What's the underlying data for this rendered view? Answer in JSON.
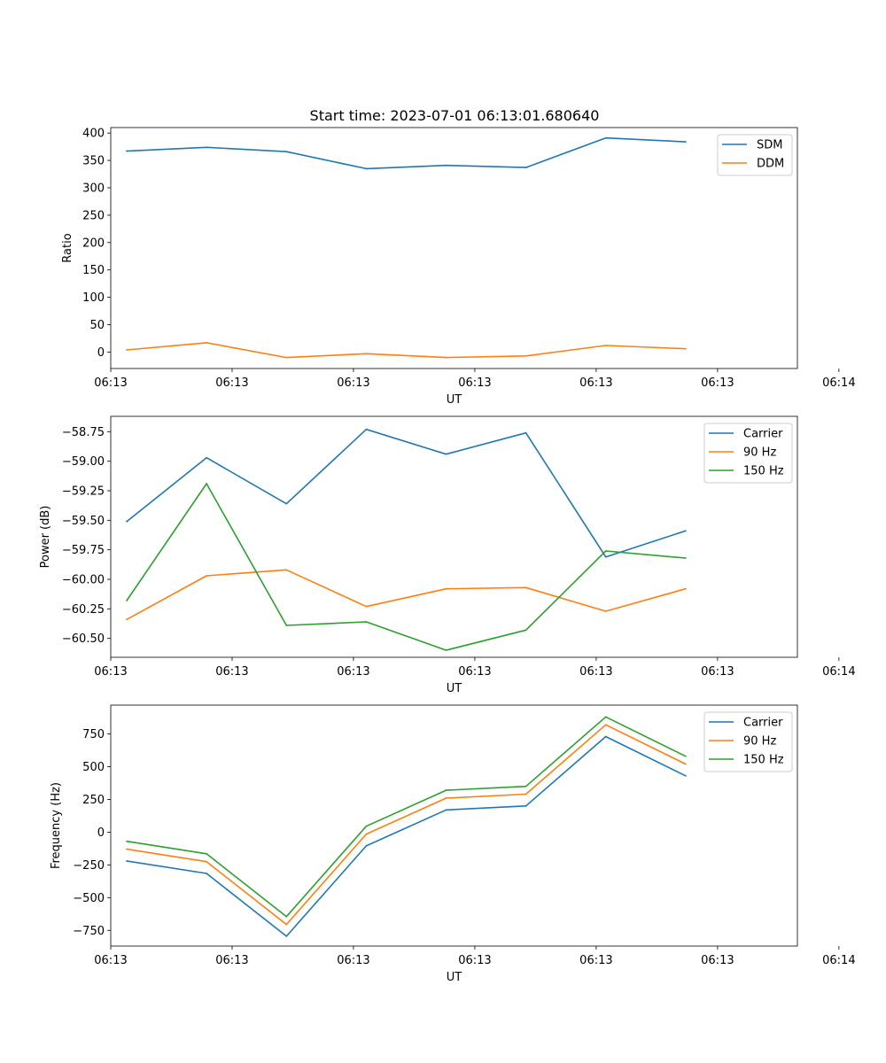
{
  "title": "Start time: 2023-07-01 06:13:01.680640",
  "colors": {
    "blue": "#1f77b4",
    "orange": "#ff7f0e",
    "green": "#2ca02c",
    "axis": "#000000",
    "background": "#ffffff"
  },
  "chart_data": [
    {
      "type": "line",
      "title": "Start time: 2023-07-01 06:13:01.680640",
      "xlabel": "UT",
      "ylabel": "Ratio",
      "x": [
        1,
        2,
        3,
        4,
        5,
        6,
        7,
        8
      ],
      "xlim": [
        0.8,
        9.4
      ],
      "xticks": [
        0.8,
        2.32,
        3.84,
        5.36,
        6.88,
        8.4,
        9.92
      ],
      "xtick_labels": [
        "06:13",
        "06:13",
        "06:13",
        "06:13",
        "06:13",
        "06:13",
        "06:14"
      ],
      "ylim": [
        -30,
        410
      ],
      "yticks": [
        0,
        50,
        100,
        150,
        200,
        250,
        300,
        350,
        400
      ],
      "ytick_labels": [
        "0",
        "50",
        "100",
        "150",
        "200",
        "250",
        "300",
        "350",
        "400"
      ],
      "legend_position": "top-right",
      "series": [
        {
          "name": "SDM",
          "color": "#1f77b4",
          "values": [
            367,
            374,
            366,
            335,
            341,
            337,
            391,
            384
          ]
        },
        {
          "name": "DDM",
          "color": "#ff7f0e",
          "values": [
            4,
            17,
            -10,
            -3,
            -10,
            -7,
            12,
            6
          ]
        }
      ]
    },
    {
      "type": "line",
      "title": "",
      "xlabel": "UT",
      "ylabel": "Power (dB)",
      "x": [
        1,
        2,
        3,
        4,
        5,
        6,
        7,
        8
      ],
      "xlim": [
        0.8,
        9.4
      ],
      "xticks": [
        0.8,
        2.32,
        3.84,
        5.36,
        6.88,
        8.4,
        9.92
      ],
      "xtick_labels": [
        "06:13",
        "06:13",
        "06:13",
        "06:13",
        "06:13",
        "06:13",
        "06:14"
      ],
      "ylim": [
        -60.66,
        -58.62
      ],
      "yticks": [
        -60.5,
        -60.25,
        -60.0,
        -59.75,
        -59.5,
        -59.25,
        -59.0,
        -58.75
      ],
      "ytick_labels": [
        "−60.50",
        "−60.25",
        "−60.00",
        "−59.75",
        "−59.50",
        "−59.25",
        "−59.00",
        "−58.75"
      ],
      "legend_position": "top-right",
      "series": [
        {
          "name": "Carrier",
          "color": "#1f77b4",
          "values": [
            -59.51,
            -58.97,
            -59.36,
            -58.73,
            -58.94,
            -58.76,
            -59.81,
            -59.59
          ]
        },
        {
          "name": "90 Hz",
          "color": "#ff7f0e",
          "values": [
            -60.34,
            -59.97,
            -59.92,
            -60.23,
            -60.08,
            -60.07,
            -60.27,
            -60.08
          ]
        },
        {
          "name": "150 Hz",
          "color": "#2ca02c",
          "values": [
            -60.18,
            -59.19,
            -60.39,
            -60.36,
            -60.6,
            -60.43,
            -59.76,
            -59.82
          ]
        }
      ]
    },
    {
      "type": "line",
      "title": "",
      "xlabel": "UT",
      "ylabel": "Frequency (Hz)",
      "x": [
        1,
        2,
        3,
        4,
        5,
        6,
        7,
        8
      ],
      "xlim": [
        0.8,
        9.4
      ],
      "xticks": [
        0.8,
        2.32,
        3.84,
        5.36,
        6.88,
        8.4,
        9.92
      ],
      "xtick_labels": [
        "06:13",
        "06:13",
        "06:13",
        "06:13",
        "06:13",
        "06:13",
        "06:14"
      ],
      "ylim": [
        -870,
        970
      ],
      "yticks": [
        -750,
        -500,
        -250,
        0,
        250,
        500,
        750
      ],
      "ytick_labels": [
        "−750",
        "−500",
        "−250",
        "0",
        "250",
        "500",
        "750"
      ],
      "legend_position": "top-right",
      "series": [
        {
          "name": "Carrier",
          "color": "#1f77b4",
          "values": [
            -220,
            -315,
            -795,
            -105,
            170,
            200,
            730,
            430
          ]
        },
        {
          "name": "90 Hz",
          "color": "#ff7f0e",
          "values": [
            -130,
            -225,
            -705,
            -15,
            260,
            290,
            820,
            520
          ]
        },
        {
          "name": "150 Hz",
          "color": "#2ca02c",
          "values": [
            -70,
            -165,
            -645,
            45,
            320,
            350,
            880,
            580
          ]
        }
      ]
    }
  ]
}
